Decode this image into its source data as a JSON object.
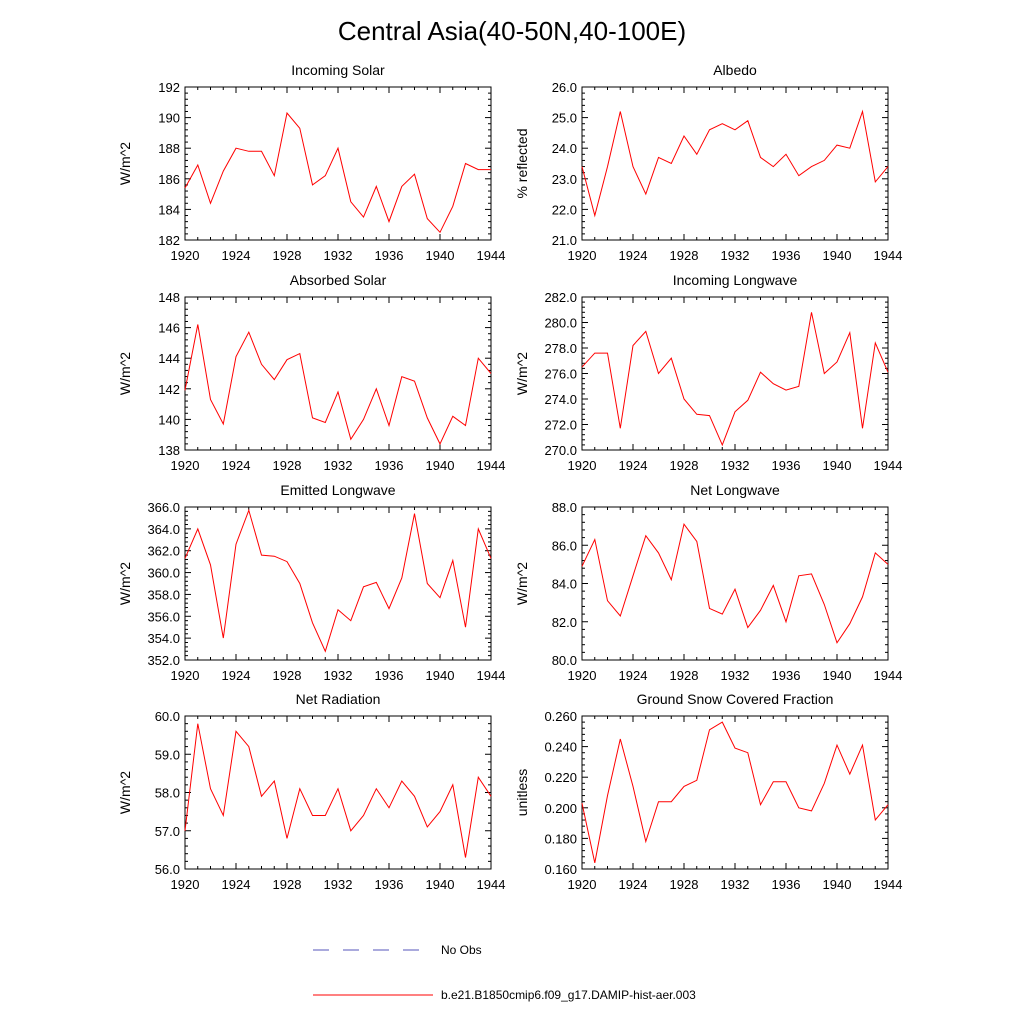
{
  "figure": {
    "title": "Central Asia(40-50N,40-100E)",
    "legend": [
      {
        "label": "No Obs",
        "color": "#5555bb",
        "style": "dashed"
      },
      {
        "label": "b.e21.B1850cmip6.f09_g17.DAMIP-hist-aer.003",
        "color": "#ff0000",
        "style": "solid"
      }
    ]
  },
  "chart_data": [
    {
      "type": "line",
      "title": "Incoming Solar",
      "ylabel": "W/m^2",
      "xlim": [
        1920,
        1944
      ],
      "ylim": [
        182,
        192
      ],
      "yticks": [
        "182",
        "184",
        "186",
        "188",
        "190",
        "192"
      ],
      "xticks": [
        "1920",
        "1924",
        "1928",
        "1932",
        "1936",
        "1940",
        "1944"
      ],
      "x": [
        1920,
        1921,
        1922,
        1923,
        1924,
        1925,
        1926,
        1927,
        1928,
        1929,
        1930,
        1931,
        1932,
        1933,
        1934,
        1935,
        1936,
        1937,
        1938,
        1939,
        1940,
        1941,
        1942,
        1943,
        1944
      ],
      "series": [
        {
          "color": "#ff0000",
          "values": [
            185.4,
            186.9,
            184.4,
            186.5,
            188.0,
            187.8,
            187.8,
            186.2,
            190.3,
            189.3,
            185.6,
            186.2,
            188.0,
            184.5,
            183.5,
            185.5,
            183.2,
            185.5,
            186.3,
            183.4,
            182.5,
            184.2,
            187.0,
            186.6,
            186.6
          ]
        }
      ]
    },
    {
      "type": "line",
      "title": "Albedo",
      "ylabel": "% reflected",
      "xlim": [
        1920,
        1944
      ],
      "ylim": [
        21.0,
        26.0
      ],
      "yticks": [
        "21.0",
        "22.0",
        "23.0",
        "24.0",
        "25.0",
        "26.0"
      ],
      "xticks": [
        "1920",
        "1924",
        "1928",
        "1932",
        "1936",
        "1940",
        "1944"
      ],
      "x": [
        1920,
        1921,
        1922,
        1923,
        1924,
        1925,
        1926,
        1927,
        1928,
        1929,
        1930,
        1931,
        1932,
        1933,
        1934,
        1935,
        1936,
        1937,
        1938,
        1939,
        1940,
        1941,
        1942,
        1943,
        1944
      ],
      "series": [
        {
          "color": "#ff0000",
          "values": [
            23.4,
            21.8,
            23.4,
            25.2,
            23.4,
            22.5,
            23.7,
            23.5,
            24.4,
            23.8,
            24.6,
            24.8,
            24.6,
            24.9,
            23.7,
            23.4,
            23.8,
            23.1,
            23.4,
            23.6,
            24.1,
            24.0,
            25.2,
            22.9,
            23.4
          ]
        }
      ]
    },
    {
      "type": "line",
      "title": "Absorbed Solar",
      "ylabel": "W/m^2",
      "xlim": [
        1920,
        1944
      ],
      "ylim": [
        138,
        148
      ],
      "yticks": [
        "138",
        "140",
        "142",
        "144",
        "146",
        "148"
      ],
      "xticks": [
        "1920",
        "1924",
        "1928",
        "1932",
        "1936",
        "1940",
        "1944"
      ],
      "x": [
        1920,
        1921,
        1922,
        1923,
        1924,
        1925,
        1926,
        1927,
        1928,
        1929,
        1930,
        1931,
        1932,
        1933,
        1934,
        1935,
        1936,
        1937,
        1938,
        1939,
        1940,
        1941,
        1942,
        1943,
        1944
      ],
      "series": [
        {
          "color": "#ff0000",
          "values": [
            141.9,
            146.2,
            141.3,
            139.7,
            144.1,
            145.7,
            143.6,
            142.6,
            143.9,
            144.3,
            140.1,
            139.8,
            141.8,
            138.7,
            140.0,
            142.0,
            139.6,
            142.8,
            142.5,
            140.1,
            138.4,
            140.2,
            139.6,
            144.0,
            143.0
          ]
        }
      ]
    },
    {
      "type": "line",
      "title": "Incoming Longwave",
      "ylabel": "W/m^2",
      "xlim": [
        1920,
        1944
      ],
      "ylim": [
        270.0,
        282.0
      ],
      "yticks": [
        "270.0",
        "272.0",
        "274.0",
        "276.0",
        "278.0",
        "280.0",
        "282.0"
      ],
      "xticks": [
        "1920",
        "1924",
        "1928",
        "1932",
        "1936",
        "1940",
        "1944"
      ],
      "x": [
        1920,
        1921,
        1922,
        1923,
        1924,
        1925,
        1926,
        1927,
        1928,
        1929,
        1930,
        1931,
        1932,
        1933,
        1934,
        1935,
        1936,
        1937,
        1938,
        1939,
        1940,
        1941,
        1942,
        1943,
        1944
      ],
      "series": [
        {
          "color": "#ff0000",
          "values": [
            276.5,
            277.6,
            277.6,
            271.7,
            278.2,
            279.3,
            276.0,
            277.2,
            274.0,
            272.8,
            272.7,
            270.4,
            273.0,
            273.9,
            276.1,
            275.2,
            274.7,
            275.0,
            280.8,
            276.0,
            276.9,
            279.2,
            271.7,
            278.4,
            276.1
          ]
        }
      ]
    },
    {
      "type": "line",
      "title": "Emitted Longwave",
      "ylabel": "W/m^2",
      "xlim": [
        1920,
        1944
      ],
      "ylim": [
        352.0,
        366.0
      ],
      "yticks": [
        "352.0",
        "354.0",
        "356.0",
        "358.0",
        "360.0",
        "362.0",
        "364.0",
        "366.0"
      ],
      "xticks": [
        "1920",
        "1924",
        "1928",
        "1932",
        "1936",
        "1940",
        "1944"
      ],
      "x": [
        1920,
        1921,
        1922,
        1923,
        1924,
        1925,
        1926,
        1927,
        1928,
        1929,
        1930,
        1931,
        1932,
        1933,
        1934,
        1935,
        1936,
        1937,
        1938,
        1939,
        1940,
        1941,
        1942,
        1943,
        1944
      ],
      "series": [
        {
          "color": "#ff0000",
          "values": [
            361.3,
            364.0,
            360.7,
            354.0,
            362.6,
            365.7,
            361.6,
            361.5,
            361.0,
            359.0,
            355.4,
            352.8,
            356.6,
            355.6,
            358.7,
            359.1,
            356.7,
            359.5,
            365.4,
            359.0,
            357.7,
            361.1,
            355.0,
            364.0,
            361.3
          ]
        }
      ]
    },
    {
      "type": "line",
      "title": "Net Longwave",
      "ylabel": "W/m^2",
      "xlim": [
        1920,
        1944
      ],
      "ylim": [
        80.0,
        88.0
      ],
      "yticks": [
        "80.0",
        "82.0",
        "84.0",
        "86.0",
        "88.0"
      ],
      "xticks": [
        "1920",
        "1924",
        "1928",
        "1932",
        "1936",
        "1940",
        "1944"
      ],
      "x": [
        1920,
        1921,
        1922,
        1923,
        1924,
        1925,
        1926,
        1927,
        1928,
        1929,
        1930,
        1931,
        1932,
        1933,
        1934,
        1935,
        1936,
        1937,
        1938,
        1939,
        1940,
        1941,
        1942,
        1943,
        1944
      ],
      "series": [
        {
          "color": "#ff0000",
          "values": [
            84.9,
            86.3,
            83.1,
            82.3,
            84.4,
            86.5,
            85.6,
            84.2,
            87.1,
            86.2,
            82.7,
            82.4,
            83.7,
            81.7,
            82.6,
            83.9,
            82.0,
            84.4,
            84.5,
            82.9,
            80.9,
            81.9,
            83.3,
            85.6,
            85.0
          ]
        }
      ]
    },
    {
      "type": "line",
      "title": "Net Radiation",
      "ylabel": "W/m^2",
      "xlim": [
        1920,
        1944
      ],
      "ylim": [
        56.0,
        60.0
      ],
      "yticks": [
        "56.0",
        "57.0",
        "58.0",
        "59.0",
        "60.0"
      ],
      "xticks": [
        "1920",
        "1924",
        "1928",
        "1932",
        "1936",
        "1940",
        "1944"
      ],
      "x": [
        1920,
        1921,
        1922,
        1923,
        1924,
        1925,
        1926,
        1927,
        1928,
        1929,
        1930,
        1931,
        1932,
        1933,
        1934,
        1935,
        1936,
        1937,
        1938,
        1939,
        1940,
        1941,
        1942,
        1943,
        1944
      ],
      "series": [
        {
          "color": "#ff0000",
          "values": [
            57.0,
            59.8,
            58.1,
            57.4,
            59.6,
            59.2,
            57.9,
            58.3,
            56.8,
            58.1,
            57.4,
            57.4,
            58.1,
            57.0,
            57.4,
            58.1,
            57.6,
            58.3,
            57.9,
            57.1,
            57.5,
            58.2,
            56.3,
            58.4,
            57.9
          ]
        }
      ]
    },
    {
      "type": "line",
      "title": "Ground Snow Covered Fraction",
      "ylabel": "unitless",
      "xlim": [
        1920,
        1944
      ],
      "ylim": [
        0.16,
        0.26
      ],
      "yticks": [
        "0.160",
        "0.180",
        "0.200",
        "0.220",
        "0.240",
        "0.260"
      ],
      "xticks": [
        "1920",
        "1924",
        "1928",
        "1932",
        "1936",
        "1940",
        "1944"
      ],
      "x": [
        1920,
        1921,
        1922,
        1923,
        1924,
        1925,
        1926,
        1927,
        1928,
        1929,
        1930,
        1931,
        1932,
        1933,
        1934,
        1935,
        1936,
        1937,
        1938,
        1939,
        1940,
        1941,
        1942,
        1943,
        1944
      ],
      "series": [
        {
          "color": "#ff0000",
          "values": [
            0.203,
            0.164,
            0.208,
            0.245,
            0.214,
            0.178,
            0.204,
            0.204,
            0.214,
            0.218,
            0.251,
            0.256,
            0.239,
            0.236,
            0.202,
            0.217,
            0.217,
            0.2,
            0.198,
            0.216,
            0.241,
            0.222,
            0.241,
            0.192,
            0.202
          ]
        }
      ]
    }
  ]
}
